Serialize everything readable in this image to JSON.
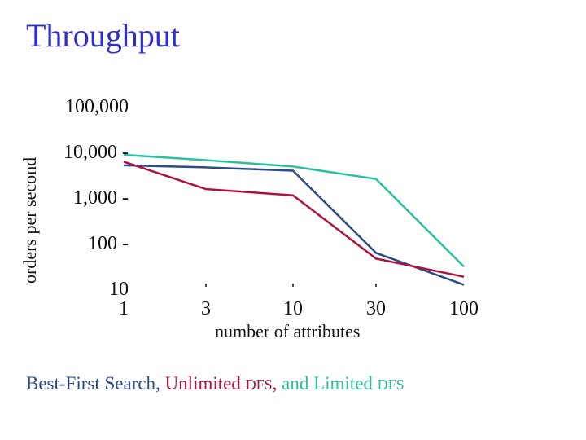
{
  "chart_data": {
    "type": "line",
    "title": "Throughput",
    "ylabel": "orders per second",
    "xlabel": "number of attributes",
    "y_scale": "log",
    "x_scale": "categorical",
    "x": [
      1,
      3,
      10,
      30,
      100
    ],
    "x_tick_labels": [
      "1",
      "3",
      "10",
      "30",
      "100"
    ],
    "y_tick_labels": [
      "100,000",
      "10,000 -",
      "1,000 -",
      "100 -",
      "10"
    ],
    "y_tick_values": [
      100000,
      10000,
      1000,
      100,
      10
    ],
    "ylim": [
      10,
      100000
    ],
    "series": [
      {
        "name": "Best-First Search",
        "color": "#2b4a86",
        "values": [
          5000,
          4500,
          3800,
          60,
          12
        ]
      },
      {
        "name": "Unlimited DFS",
        "color": "#b0123f",
        "values": [
          6000,
          1500,
          1100,
          45,
          18
        ]
      },
      {
        "name": "Limited DFS",
        "color": "#2bbf9c",
        "values": [
          8500,
          6500,
          4700,
          2500,
          30
        ]
      }
    ],
    "grid": false,
    "legend": "caption-below"
  },
  "caption": {
    "part1": "Best-First Search",
    "sep1": ", ",
    "part2": "Unlimited ",
    "part2_sc": "DFS",
    "sep2": ", ",
    "part3": "and Limited ",
    "part3_sc": "DFS"
  }
}
